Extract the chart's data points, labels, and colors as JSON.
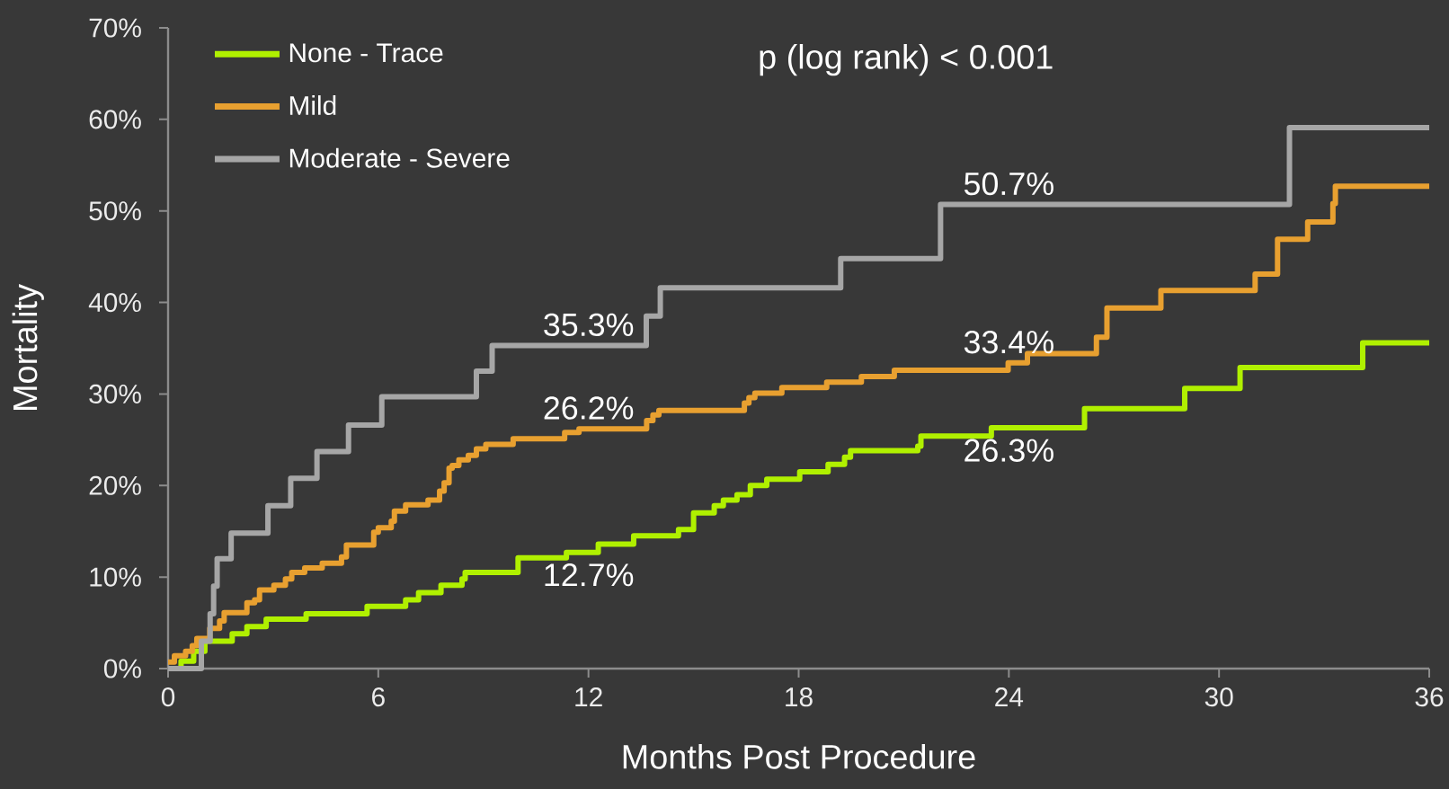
{
  "chart_data": {
    "type": "step",
    "xlabel": "Months Post Procedure",
    "ylabel": "Mortality",
    "xlim": [
      0,
      36
    ],
    "xticks": [
      0,
      6,
      12,
      18,
      24,
      30,
      36
    ],
    "ylim": [
      0,
      70
    ],
    "yticks": [
      {
        "value": 0,
        "label": "0%"
      },
      {
        "value": 10,
        "label": "10%"
      },
      {
        "value": 20,
        "label": "20%"
      },
      {
        "value": 30,
        "label": "30%"
      },
      {
        "value": 40,
        "label": "40%"
      },
      {
        "value": 50,
        "label": "50%"
      },
      {
        "value": 60,
        "label": "60%"
      },
      {
        "value": 70,
        "label": "70%"
      }
    ],
    "legend": "top left",
    "series": [
      {
        "name": "None - Trace",
        "color": "#b0f000",
        "x": [
          0,
          0.37,
          0.73,
          1.05,
          1.83,
          2.25,
          2.8,
          3.94,
          5.68,
          6.78,
          7.15,
          7.79,
          8.39,
          8.48,
          9.99,
          11.37,
          12,
          12.28,
          13.29,
          14.57,
          15.0,
          15.59,
          15.85,
          16.24,
          16.62,
          17.09,
          18.03,
          18.84,
          19.31,
          19.48,
          21.4,
          21.49,
          23.5,
          24,
          26.16,
          29.02,
          30.6,
          34.1,
          36
        ],
        "values": [
          0,
          0.8,
          1.9,
          3.0,
          3.8,
          4.6,
          5.4,
          6.0,
          6.8,
          7.5,
          8.3,
          9.1,
          9.8,
          10.5,
          12.1,
          12.7,
          12.7,
          13.6,
          14.5,
          15.2,
          17.0,
          17.8,
          18.4,
          19.0,
          20.0,
          20.7,
          21.5,
          22.3,
          23.1,
          23.8,
          24.3,
          25.4,
          26.3,
          26.3,
          28.4,
          30.6,
          32.9,
          35.6,
          35.6
        ],
        "value_labels": [
          null,
          null,
          null,
          null,
          null,
          null,
          null,
          null,
          null,
          null,
          null,
          null,
          null,
          null,
          null,
          null,
          "12.7%",
          null,
          null,
          null,
          null,
          null,
          null,
          null,
          null,
          null,
          null,
          null,
          null,
          null,
          null,
          null,
          null,
          "26.3%",
          null,
          null,
          null,
          null,
          null
        ]
      },
      {
        "name": "Mild",
        "color": "#e8a030",
        "x": [
          0,
          0.18,
          0.5,
          0.69,
          0.82,
          1.19,
          1.47,
          1.6,
          2.25,
          2.47,
          2.61,
          3.02,
          3.35,
          3.53,
          3.9,
          4.4,
          4.95,
          5.09,
          5.87,
          6.0,
          6.37,
          6.46,
          6.78,
          7.42,
          7.75,
          7.88,
          8.02,
          8.11,
          8.3,
          8.57,
          8.8,
          9.07,
          9.85,
          11.32,
          11.73,
          12,
          13.66,
          13.84,
          14.01,
          16.45,
          16.58,
          16.75,
          17.52,
          18.8,
          19.79,
          20.73,
          23.98,
          24,
          24.53,
          26.5,
          26.8,
          28.34,
          31.03,
          31.67,
          32.53,
          33.25,
          33.32,
          36
        ],
        "values": [
          0.7,
          1.4,
          1.9,
          2.5,
          3.3,
          4.4,
          5.2,
          6.1,
          7.2,
          7.5,
          8.6,
          9.1,
          9.8,
          10.5,
          11.0,
          11.5,
          12.2,
          13.5,
          14.9,
          15.4,
          16.1,
          17.2,
          17.9,
          18.4,
          19.4,
          20.3,
          21.9,
          22.2,
          22.8,
          23.3,
          24.0,
          24.5,
          25.1,
          25.8,
          26.2,
          26.2,
          27.1,
          27.7,
          28.2,
          29.0,
          29.6,
          30.1,
          30.7,
          31.3,
          31.9,
          32.6,
          33.4,
          33.4,
          34.4,
          36.2,
          39.4,
          41.3,
          43.1,
          46.9,
          48.8,
          50.8,
          52.7,
          52.7
        ],
        "value_labels": [
          null,
          null,
          null,
          null,
          null,
          null,
          null,
          null,
          null,
          null,
          null,
          null,
          null,
          null,
          null,
          null,
          null,
          null,
          null,
          null,
          null,
          null,
          null,
          null,
          null,
          null,
          null,
          null,
          null,
          null,
          null,
          null,
          null,
          null,
          null,
          "26.2%",
          null,
          null,
          null,
          null,
          null,
          null,
          null,
          null,
          null,
          null,
          null,
          "33.4%",
          null,
          null,
          null,
          null,
          null,
          null,
          null,
          null,
          null,
          null
        ]
      },
      {
        "name": "Moderate - Severe",
        "color": "#a6a6a6",
        "x": [
          0,
          0.95,
          1.2,
          1.3,
          1.4,
          1.8,
          2.85,
          3.5,
          4.25,
          5.15,
          6.1,
          8.8,
          9.25,
          12,
          13.65,
          14.05,
          19.2,
          22.05,
          24,
          32.01,
          36
        ],
        "values": [
          0,
          3.0,
          6.0,
          9.0,
          12.0,
          14.8,
          17.8,
          20.8,
          23.7,
          26.6,
          29.7,
          32.5,
          35.3,
          35.3,
          38.5,
          41.6,
          44.8,
          50.7,
          50.7,
          59.1,
          59.1
        ],
        "value_labels": [
          null,
          null,
          null,
          null,
          null,
          null,
          null,
          null,
          null,
          null,
          null,
          null,
          null,
          "35.3%",
          null,
          null,
          null,
          null,
          "50.7%",
          null,
          null
        ]
      }
    ],
    "annotations": [
      "p (log rank) < 0.001"
    ]
  }
}
